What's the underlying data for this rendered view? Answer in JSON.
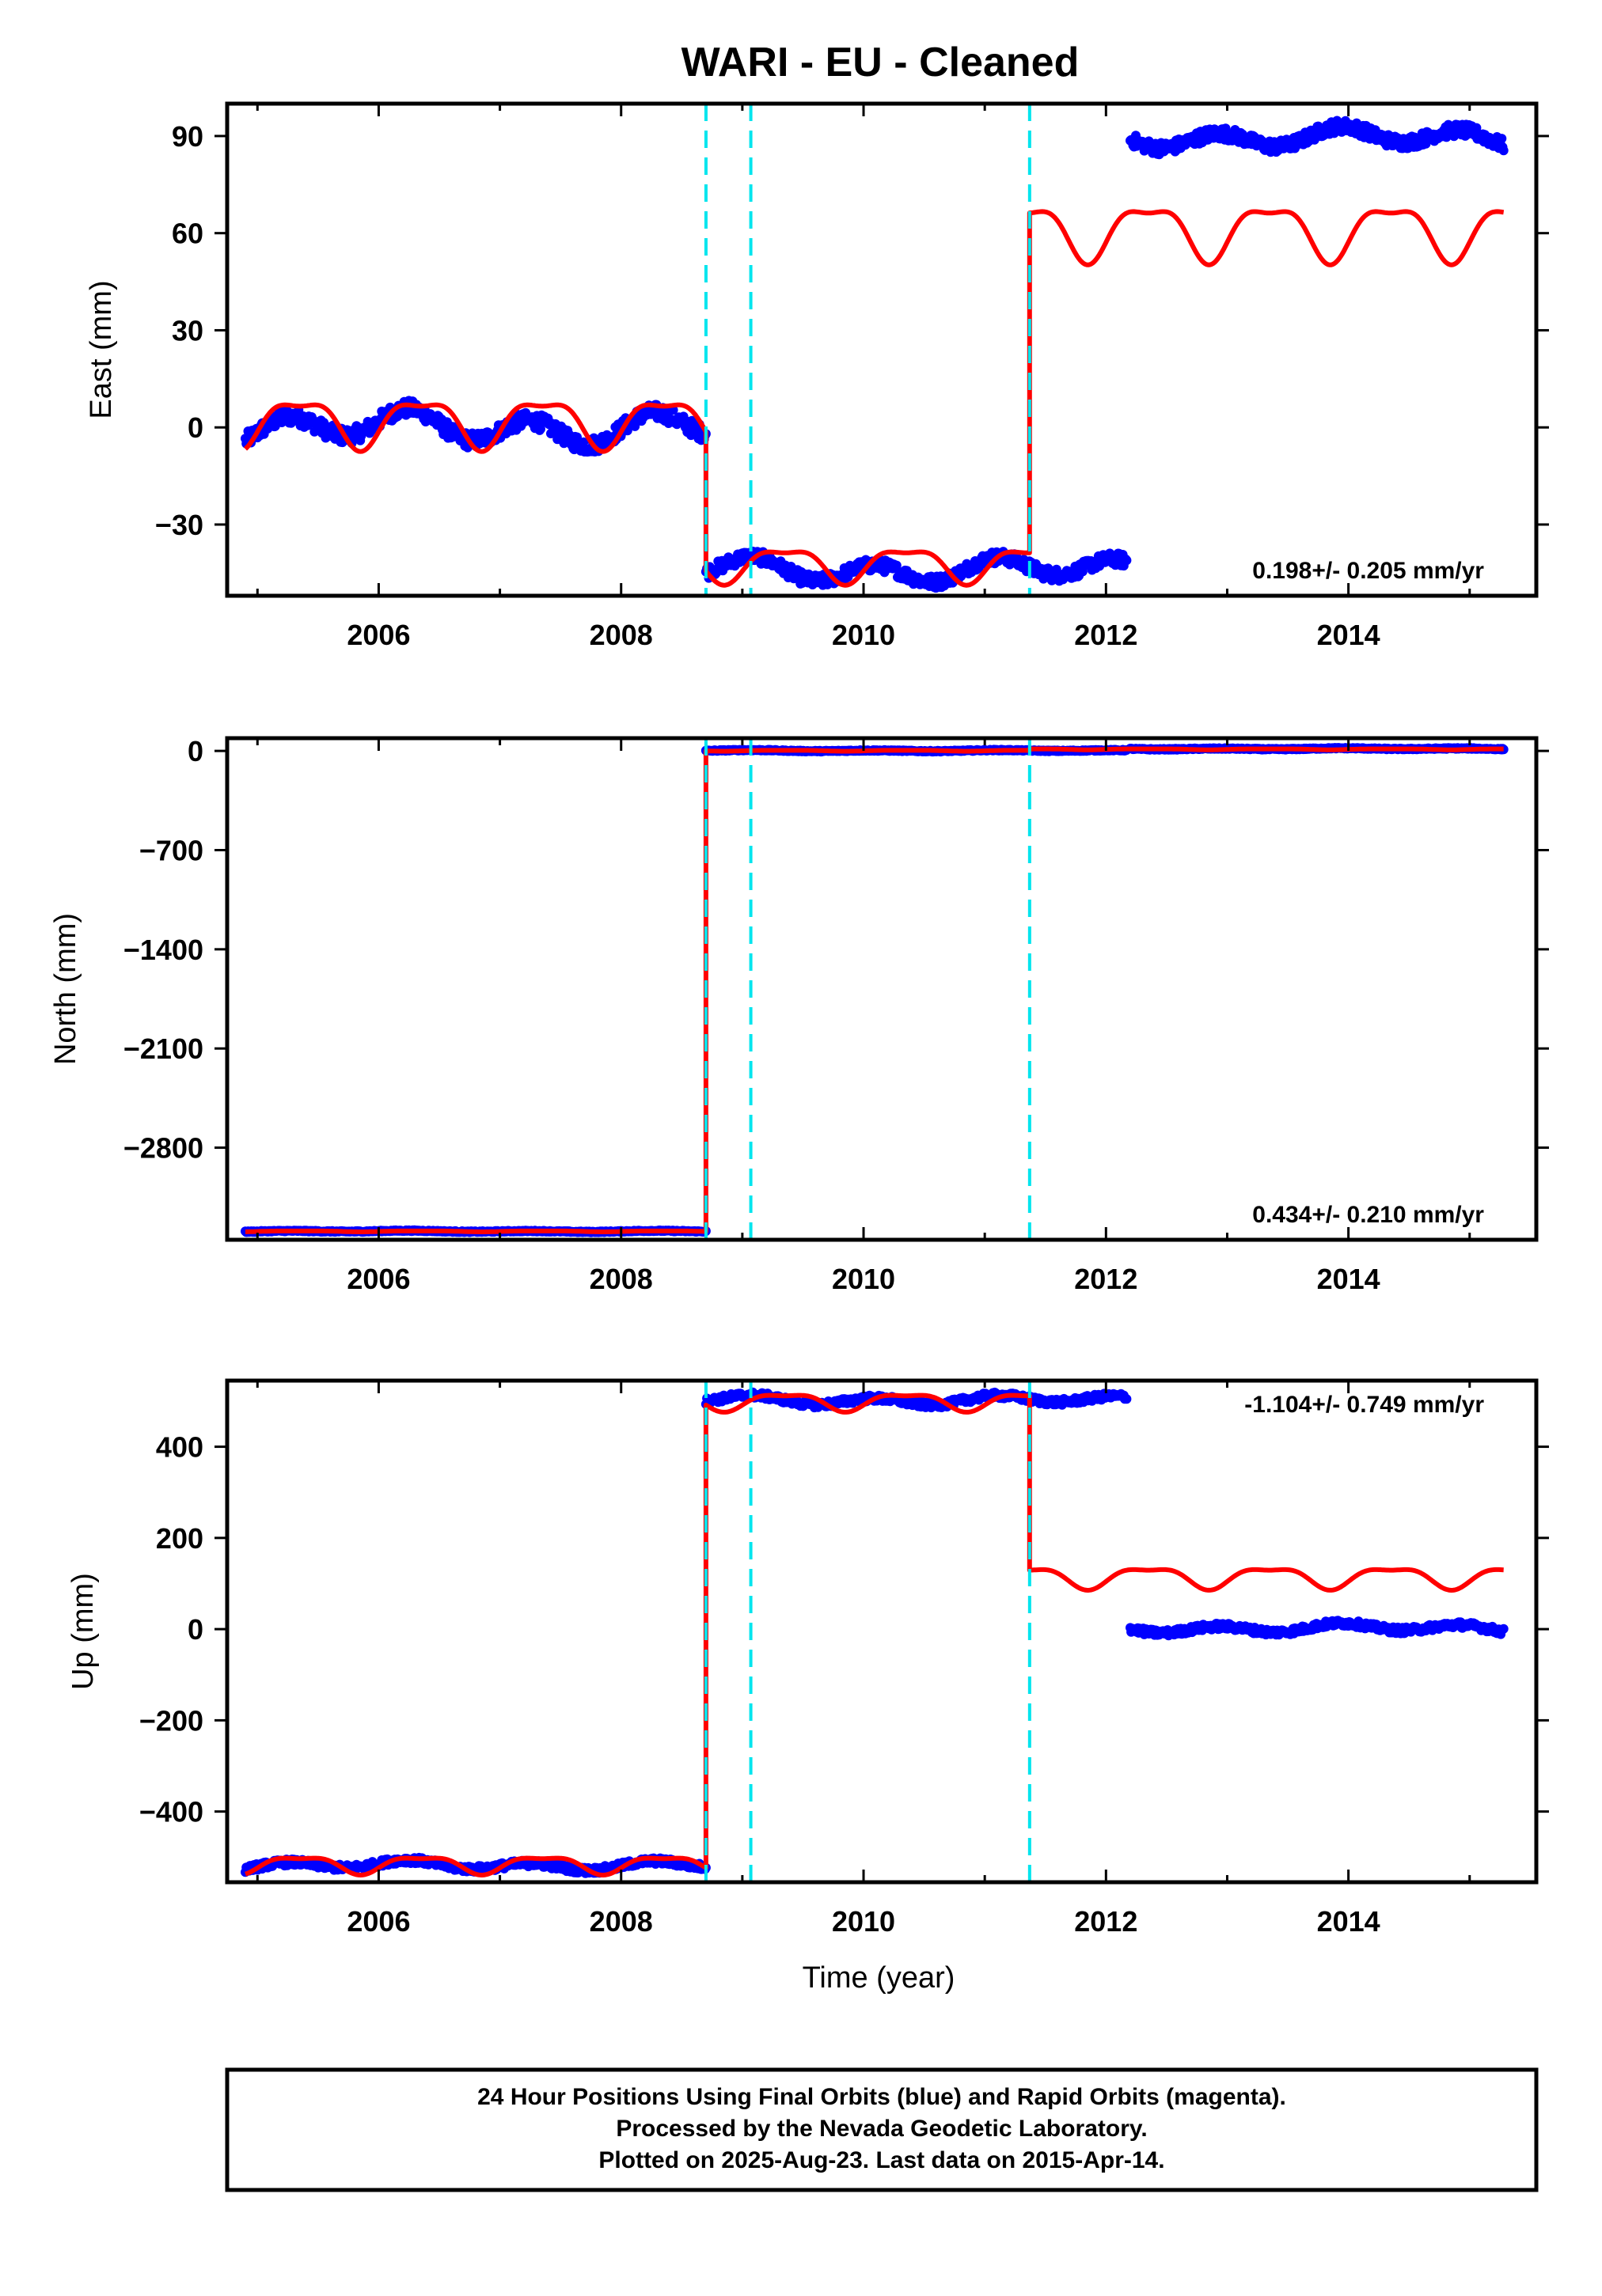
{
  "title": "WARI  - EU - Cleaned",
  "xlabel": "Time (year)",
  "footer": {
    "line1": "24 Hour Positions Using Final Orbits (blue) and Rapid Orbits (magenta).",
    "line2": "Processed by the Nevada Geodetic Laboratory.",
    "line3": "Plotted on 2025-Aug-23. Last data on 2015-Apr-14."
  },
  "colors": {
    "observed": "#0000ff",
    "model": "#ff0000",
    "breaks": "#00e5ee",
    "frame": "#000000"
  },
  "chart_data": [
    {
      "type": "scatter",
      "panel": "east",
      "ylabel": "East (mm)",
      "rate": "0.198+/- 0.205 mm/yr",
      "xlim": [
        2004.75,
        2015.55
      ],
      "ylim": [
        -52,
        100
      ],
      "xticks": [
        2006,
        2008,
        2010,
        2012,
        2014
      ],
      "yticks": [
        -30,
        0,
        30,
        60,
        90
      ],
      "breaks": [
        2008.7,
        2009.07,
        2011.37
      ],
      "observed_segments": [
        {
          "x_range": [
            2004.9,
            2008.7
          ],
          "mean": 0,
          "amplitude": 4,
          "noise": 2.5
        },
        {
          "x_range": [
            2008.7,
            2012.17
          ],
          "mean": -44,
          "amplitude": 3,
          "noise": 2
        },
        {
          "x_range": [
            2012.2,
            2015.28
          ],
          "mean": 89.5,
          "amplitude": 2.5,
          "noise": 2
        }
      ],
      "model_segments": [
        {
          "x_range": [
            2004.9,
            2008.7
          ],
          "mean": 2,
          "amplitude": 7
        },
        {
          "x_range": [
            2008.7,
            2011.37
          ],
          "mean": -42,
          "amplitude": 5
        },
        {
          "x_range": [
            2011.37,
            2015.28
          ],
          "mean": 61,
          "amplitude": 8
        }
      ]
    },
    {
      "type": "scatter",
      "panel": "north",
      "ylabel": "North (mm)",
      "rate": "0.434+/- 0.210 mm/yr",
      "xlim": [
        2004.75,
        2015.55
      ],
      "ylim": [
        -3450,
        90
      ],
      "xticks": [
        2006,
        2008,
        2010,
        2012,
        2014
      ],
      "yticks": [
        -2800,
        -2100,
        -1400,
        -700,
        0
      ],
      "breaks": [
        2008.7,
        2009.07,
        2011.37
      ],
      "observed_segments": [
        {
          "x_range": [
            2004.9,
            2008.7
          ],
          "mean": -3390,
          "amplitude": 3,
          "noise": 4
        },
        {
          "x_range": [
            2008.7,
            2012.17
          ],
          "mean": 2,
          "amplitude": 3,
          "noise": 4
        },
        {
          "x_range": [
            2012.2,
            2015.28
          ],
          "mean": 15,
          "amplitude": 3,
          "noise": 4
        }
      ],
      "model_segments": [
        {
          "x_range": [
            2004.9,
            2008.7
          ],
          "mean": -3390,
          "amplitude": 3
        },
        {
          "x_range": [
            2008.7,
            2011.37
          ],
          "mean": 2,
          "amplitude": 3
        },
        {
          "x_range": [
            2011.37,
            2015.28
          ],
          "mean": 12,
          "amplitude": 3
        }
      ]
    },
    {
      "type": "scatter",
      "panel": "up",
      "ylabel": "Up (mm)",
      "rate": "-1.104+/- 0.749 mm/yr",
      "xlim": [
        2004.75,
        2015.55
      ],
      "ylim": [
        -555,
        545
      ],
      "xticks": [
        2006,
        2008,
        2010,
        2012,
        2014
      ],
      "yticks": [
        -400,
        -200,
        0,
        200,
        400
      ],
      "breaks": [
        2008.7,
        2009.07,
        2011.37
      ],
      "observed_segments": [
        {
          "x_range": [
            2004.9,
            2008.7
          ],
          "mean": -518,
          "amplitude": 8,
          "noise": 7
        },
        {
          "x_range": [
            2008.7,
            2012.17
          ],
          "mean": 502,
          "amplitude": 8,
          "noise": 7
        },
        {
          "x_range": [
            2012.2,
            2015.28
          ],
          "mean": 2,
          "amplitude": 8,
          "noise": 7
        }
      ],
      "model_segments": [
        {
          "x_range": [
            2004.9,
            2008.7
          ],
          "mean": -515,
          "amplitude": 18
        },
        {
          "x_range": [
            2008.7,
            2011.37
          ],
          "mean": 500,
          "amplitude": 18
        },
        {
          "x_range": [
            2011.37,
            2015.28
          ],
          "mean": 115,
          "amplitude": 22
        }
      ]
    }
  ]
}
